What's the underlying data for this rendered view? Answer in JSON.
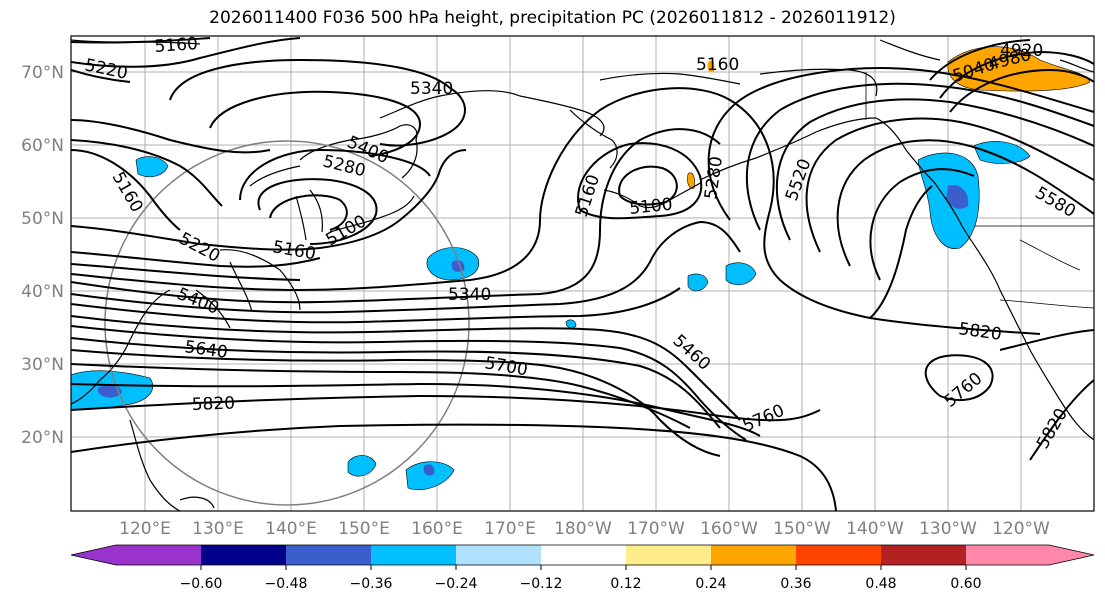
{
  "title": "2026011400 F036 500 hPa height, precipitation PC (2026011812 - 2026011912)",
  "lat_labels": [
    "70°N",
    "60°N",
    "50°N",
    "40°N",
    "30°N",
    "20°N"
  ],
  "lon_labels": [
    "120°E",
    "130°E",
    "140°E",
    "150°E",
    "160°E",
    "170°E",
    "180°W",
    "170°W",
    "160°W",
    "150°W",
    "140°W",
    "130°W",
    "120°W"
  ],
  "colorbar": {
    "ticks": [
      "−0.60",
      "−0.48",
      "−0.36",
      "−0.24",
      "−0.12",
      "0.12",
      "0.24",
      "0.36",
      "0.48",
      "0.60"
    ],
    "colors": [
      "#9933cc",
      "#00008b",
      "#3a5fcd",
      "#00bfff",
      "#b0e2ff",
      "#ffffff",
      "#ffec8b",
      "#ffa500",
      "#ff4500",
      "#b22222",
      "#ff88aa"
    ]
  },
  "contour_labels": [
    {
      "text": "5160"
    },
    {
      "text": "5220"
    },
    {
      "text": "5340"
    },
    {
      "text": "5160"
    },
    {
      "text": "4920"
    },
    {
      "text": "4980"
    },
    {
      "text": "5040"
    },
    {
      "text": "5400"
    },
    {
      "text": "5280"
    },
    {
      "text": "5160"
    },
    {
      "text": "5100"
    },
    {
      "text": "5220"
    },
    {
      "text": "5160"
    },
    {
      "text": "5400"
    },
    {
      "text": "5640"
    },
    {
      "text": "5340"
    },
    {
      "text": "5160"
    },
    {
      "text": "5100"
    },
    {
      "text": "5520"
    },
    {
      "text": "5280"
    },
    {
      "text": "5580"
    },
    {
      "text": "5700"
    },
    {
      "text": "5820"
    },
    {
      "text": "5460"
    },
    {
      "text": "5760"
    },
    {
      "text": "5820"
    },
    {
      "text": "5760"
    },
    {
      "text": "5820"
    }
  ]
}
